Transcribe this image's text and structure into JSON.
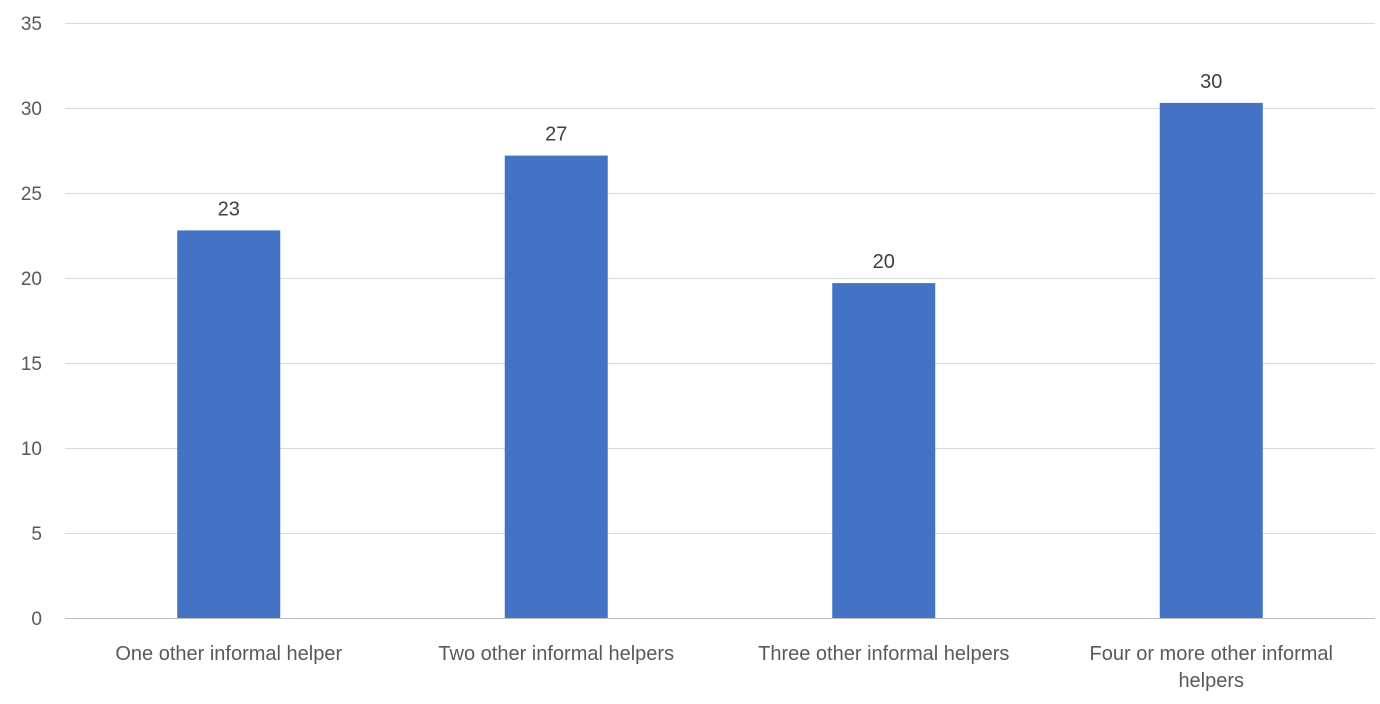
{
  "chart_data": {
    "type": "bar",
    "categories": [
      [
        "One other informal helper"
      ],
      [
        "Two other informal helpers"
      ],
      [
        "Three other informal helpers"
      ],
      [
        "Four or more other informal",
        "helpers"
      ]
    ],
    "values": [
      22.8,
      27.2,
      19.7,
      30.3
    ],
    "data_labels": [
      "23",
      "27",
      "20",
      "30"
    ],
    "title": "",
    "xlabel": "",
    "ylabel": "",
    "ylim": [
      0,
      35
    ],
    "yticks": [
      0,
      5,
      10,
      15,
      20,
      25,
      30,
      35
    ],
    "grid": true,
    "legend": "none",
    "colors": {
      "bar": "#4472C4",
      "grid": "#D9D9D9",
      "axis": "#BFBFBF"
    }
  }
}
